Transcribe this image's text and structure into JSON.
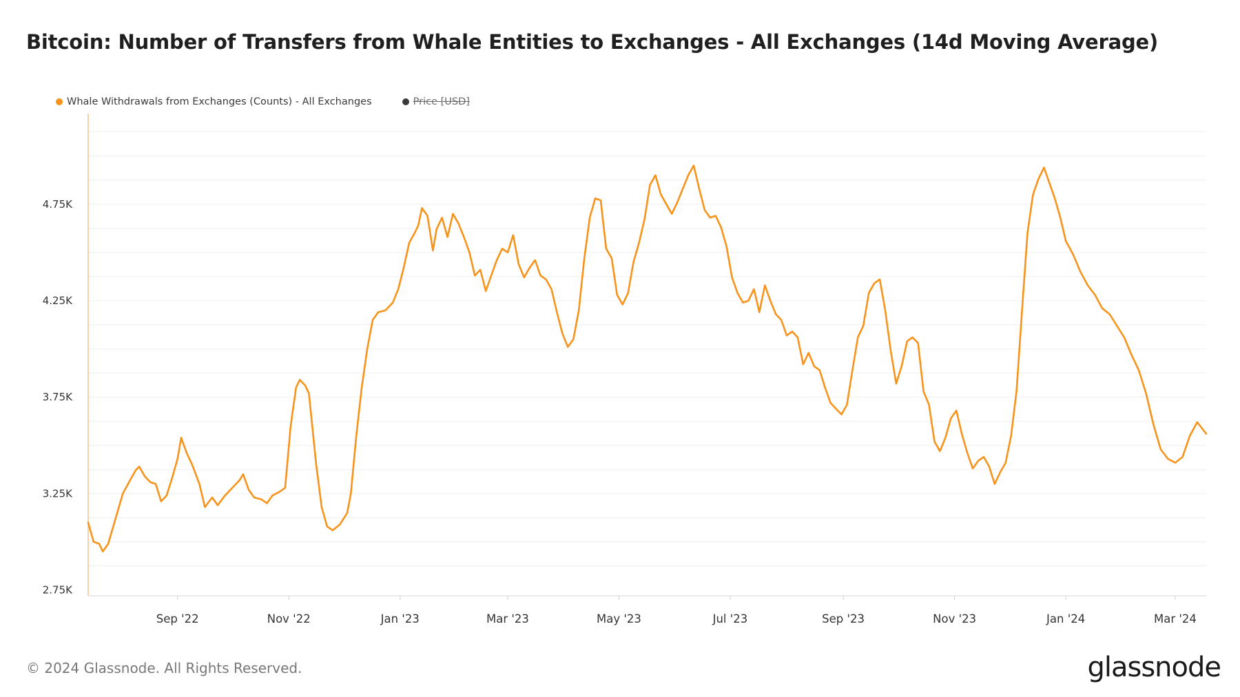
{
  "title": "Bitcoin: Number of Transfers from Whale Entities to Exchanges - All Exchanges (14d Moving Average)",
  "legend": [
    {
      "label": "Whale Withdrawals from Exchanges (Counts) - All Exchanges",
      "color": "#f7931a",
      "active": true
    },
    {
      "label": "Price [USD]",
      "color": "#3a3a3a",
      "active": false
    }
  ],
  "footer": "© 2024 Glassnode. All Rights Reserved.",
  "brand": "glassnode",
  "chart_data": {
    "type": "line",
    "title": "Bitcoin: Number of Transfers from Whale Entities to Exchanges - All Exchanges (14d Moving Average)",
    "xlabel": "",
    "ylabel": "",
    "y_ticks": [
      "2.75K",
      "3.25K",
      "3.75K",
      "4.25K",
      "4.75K"
    ],
    "y_tick_values": [
      2750,
      3250,
      3750,
      4250,
      4750
    ],
    "x_ticks": [
      "Sep '22",
      "Nov '22",
      "Jan '23",
      "Mar '23",
      "May '23",
      "Jul '23",
      "Sep '23",
      "Nov '23",
      "Jan '24",
      "Mar '24"
    ],
    "x_tick_dates": [
      "2022-09-01",
      "2022-11-01",
      "2023-01-01",
      "2023-03-01",
      "2023-05-01",
      "2023-07-01",
      "2023-09-01",
      "2023-11-01",
      "2024-01-01",
      "2024-03-01"
    ],
    "xlim": [
      "2022-07-14",
      "2024-03-18"
    ],
    "ylim": [
      2720,
      5220
    ],
    "grid": true,
    "legend_position": "top-left",
    "series": [
      {
        "name": "Whale Withdrawals from Exchanges (Counts) - All Exchanges",
        "color": "#f7931a",
        "points": [
          [
            "2022-07-14",
            3100
          ],
          [
            "2022-07-17",
            3000
          ],
          [
            "2022-07-20",
            2990
          ],
          [
            "2022-07-22",
            2950
          ],
          [
            "2022-07-25",
            2990
          ],
          [
            "2022-07-29",
            3120
          ],
          [
            "2022-08-02",
            3250
          ],
          [
            "2022-08-06",
            3320
          ],
          [
            "2022-08-09",
            3370
          ],
          [
            "2022-08-11",
            3390
          ],
          [
            "2022-08-14",
            3340
          ],
          [
            "2022-08-17",
            3310
          ],
          [
            "2022-08-20",
            3300
          ],
          [
            "2022-08-23",
            3210
          ],
          [
            "2022-08-26",
            3240
          ],
          [
            "2022-08-29",
            3330
          ],
          [
            "2022-09-01",
            3430
          ],
          [
            "2022-09-03",
            3540
          ],
          [
            "2022-09-06",
            3460
          ],
          [
            "2022-09-09",
            3400
          ],
          [
            "2022-09-13",
            3300
          ],
          [
            "2022-09-16",
            3180
          ],
          [
            "2022-09-20",
            3230
          ],
          [
            "2022-09-23",
            3190
          ],
          [
            "2022-09-27",
            3240
          ],
          [
            "2022-10-01",
            3280
          ],
          [
            "2022-10-05",
            3320
          ],
          [
            "2022-10-07",
            3350
          ],
          [
            "2022-10-10",
            3270
          ],
          [
            "2022-10-13",
            3230
          ],
          [
            "2022-10-17",
            3220
          ],
          [
            "2022-10-20",
            3200
          ],
          [
            "2022-10-23",
            3240
          ],
          [
            "2022-10-27",
            3260
          ],
          [
            "2022-10-30",
            3280
          ],
          [
            "2022-11-02",
            3600
          ],
          [
            "2022-11-05",
            3800
          ],
          [
            "2022-11-07",
            3840
          ],
          [
            "2022-11-10",
            3810
          ],
          [
            "2022-11-12",
            3770
          ],
          [
            "2022-11-16",
            3400
          ],
          [
            "2022-11-19",
            3180
          ],
          [
            "2022-11-22",
            3080
          ],
          [
            "2022-11-25",
            3060
          ],
          [
            "2022-11-29",
            3090
          ],
          [
            "2022-12-03",
            3150
          ],
          [
            "2022-12-05",
            3250
          ],
          [
            "2022-12-08",
            3550
          ],
          [
            "2022-12-11",
            3800
          ],
          [
            "2022-12-14",
            4000
          ],
          [
            "2022-12-17",
            4150
          ],
          [
            "2022-12-20",
            4190
          ],
          [
            "2022-12-24",
            4200
          ],
          [
            "2022-12-28",
            4240
          ],
          [
            "2022-12-31",
            4310
          ],
          [
            "2023-01-03",
            4420
          ],
          [
            "2023-01-06",
            4550
          ],
          [
            "2023-01-09",
            4600
          ],
          [
            "2023-01-11",
            4640
          ],
          [
            "2023-01-13",
            4730
          ],
          [
            "2023-01-16",
            4690
          ],
          [
            "2023-01-19",
            4510
          ],
          [
            "2023-01-21",
            4620
          ],
          [
            "2023-01-24",
            4680
          ],
          [
            "2023-01-27",
            4580
          ],
          [
            "2023-01-30",
            4700
          ],
          [
            "2023-02-02",
            4650
          ],
          [
            "2023-02-05",
            4580
          ],
          [
            "2023-02-08",
            4500
          ],
          [
            "2023-02-11",
            4380
          ],
          [
            "2023-02-14",
            4410
          ],
          [
            "2023-02-17",
            4300
          ],
          [
            "2023-02-20",
            4380
          ],
          [
            "2023-02-23",
            4460
          ],
          [
            "2023-02-26",
            4520
          ],
          [
            "2023-03-01",
            4500
          ],
          [
            "2023-03-04",
            4590
          ],
          [
            "2023-03-07",
            4440
          ],
          [
            "2023-03-10",
            4370
          ],
          [
            "2023-03-13",
            4420
          ],
          [
            "2023-03-16",
            4460
          ],
          [
            "2023-03-19",
            4380
          ],
          [
            "2023-03-22",
            4360
          ],
          [
            "2023-03-25",
            4310
          ],
          [
            "2023-03-28",
            4190
          ],
          [
            "2023-03-31",
            4080
          ],
          [
            "2023-04-03",
            4010
          ],
          [
            "2023-04-06",
            4050
          ],
          [
            "2023-04-09",
            4200
          ],
          [
            "2023-04-12",
            4470
          ],
          [
            "2023-04-15",
            4680
          ],
          [
            "2023-04-18",
            4780
          ],
          [
            "2023-04-21",
            4770
          ],
          [
            "2023-04-24",
            4520
          ],
          [
            "2023-04-27",
            4470
          ],
          [
            "2023-04-30",
            4280
          ],
          [
            "2023-05-03",
            4230
          ],
          [
            "2023-05-06",
            4290
          ],
          [
            "2023-05-09",
            4450
          ],
          [
            "2023-05-12",
            4550
          ],
          [
            "2023-05-15",
            4670
          ],
          [
            "2023-05-18",
            4850
          ],
          [
            "2023-05-21",
            4900
          ],
          [
            "2023-05-24",
            4800
          ],
          [
            "2023-05-27",
            4750
          ],
          [
            "2023-05-30",
            4700
          ],
          [
            "2023-06-02",
            4760
          ],
          [
            "2023-06-05",
            4830
          ],
          [
            "2023-06-08",
            4900
          ],
          [
            "2023-06-11",
            4950
          ],
          [
            "2023-06-14",
            4830
          ],
          [
            "2023-06-17",
            4720
          ],
          [
            "2023-06-20",
            4680
          ],
          [
            "2023-06-23",
            4690
          ],
          [
            "2023-06-26",
            4630
          ],
          [
            "2023-06-29",
            4530
          ],
          [
            "2023-07-02",
            4370
          ],
          [
            "2023-07-05",
            4290
          ],
          [
            "2023-07-08",
            4240
          ],
          [
            "2023-07-11",
            4250
          ],
          [
            "2023-07-14",
            4310
          ],
          [
            "2023-07-17",
            4190
          ],
          [
            "2023-07-20",
            4330
          ],
          [
            "2023-07-23",
            4250
          ],
          [
            "2023-07-26",
            4180
          ],
          [
            "2023-07-29",
            4150
          ],
          [
            "2023-08-01",
            4070
          ],
          [
            "2023-08-04",
            4090
          ],
          [
            "2023-08-07",
            4060
          ],
          [
            "2023-08-10",
            3920
          ],
          [
            "2023-08-13",
            3980
          ],
          [
            "2023-08-16",
            3910
          ],
          [
            "2023-08-19",
            3890
          ],
          [
            "2023-08-22",
            3800
          ],
          [
            "2023-08-25",
            3720
          ],
          [
            "2023-08-28",
            3690
          ],
          [
            "2023-08-31",
            3660
          ],
          [
            "2023-09-03",
            3710
          ],
          [
            "2023-09-06",
            3890
          ],
          [
            "2023-09-09",
            4060
          ],
          [
            "2023-09-12",
            4120
          ],
          [
            "2023-09-15",
            4290
          ],
          [
            "2023-09-18",
            4340
          ],
          [
            "2023-09-21",
            4360
          ],
          [
            "2023-09-24",
            4200
          ],
          [
            "2023-09-27",
            3990
          ],
          [
            "2023-09-30",
            3820
          ],
          [
            "2023-10-03",
            3910
          ],
          [
            "2023-10-06",
            4040
          ],
          [
            "2023-10-09",
            4060
          ],
          [
            "2023-10-12",
            4030
          ],
          [
            "2023-10-15",
            3780
          ],
          [
            "2023-10-18",
            3710
          ],
          [
            "2023-10-21",
            3520
          ],
          [
            "2023-10-24",
            3470
          ],
          [
            "2023-10-27",
            3540
          ],
          [
            "2023-10-30",
            3640
          ],
          [
            "2023-11-02",
            3680
          ],
          [
            "2023-11-05",
            3560
          ],
          [
            "2023-11-08",
            3460
          ],
          [
            "2023-11-11",
            3380
          ],
          [
            "2023-11-14",
            3420
          ],
          [
            "2023-11-17",
            3440
          ],
          [
            "2023-11-20",
            3390
          ],
          [
            "2023-11-23",
            3300
          ],
          [
            "2023-11-26",
            3360
          ],
          [
            "2023-11-29",
            3410
          ],
          [
            "2023-12-02",
            3550
          ],
          [
            "2023-12-05",
            3780
          ],
          [
            "2023-12-08",
            4200
          ],
          [
            "2023-12-11",
            4600
          ],
          [
            "2023-12-14",
            4800
          ],
          [
            "2023-12-17",
            4880
          ],
          [
            "2023-12-20",
            4940
          ],
          [
            "2023-12-23",
            4860
          ],
          [
            "2023-12-26",
            4780
          ],
          [
            "2023-12-29",
            4680
          ],
          [
            "2024-01-01",
            4560
          ],
          [
            "2024-01-05",
            4490
          ],
          [
            "2024-01-09",
            4400
          ],
          [
            "2024-01-13",
            4330
          ],
          [
            "2024-01-17",
            4280
          ],
          [
            "2024-01-21",
            4210
          ],
          [
            "2024-01-25",
            4180
          ],
          [
            "2024-01-29",
            4120
          ],
          [
            "2024-02-02",
            4060
          ],
          [
            "2024-02-06",
            3970
          ],
          [
            "2024-02-10",
            3890
          ],
          [
            "2024-02-14",
            3770
          ],
          [
            "2024-02-18",
            3610
          ],
          [
            "2024-02-22",
            3480
          ],
          [
            "2024-02-26",
            3430
          ],
          [
            "2024-03-01",
            3410
          ],
          [
            "2024-03-05",
            3440
          ],
          [
            "2024-03-09",
            3550
          ],
          [
            "2024-03-13",
            3620
          ],
          [
            "2024-03-18",
            3560
          ]
        ]
      }
    ]
  }
}
